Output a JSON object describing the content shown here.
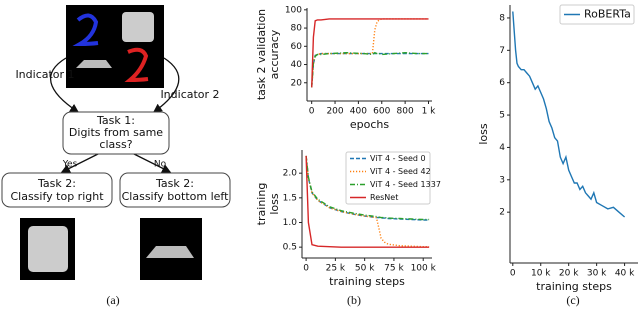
{
  "diagram": {
    "indicator_left": "Indicator 1",
    "indicator_right": "Indicator 2",
    "task1": [
      "Task 1:",
      "Digits from same",
      "class?"
    ],
    "yes": "Yes",
    "no": "No",
    "task2_left": [
      "Task 2:",
      "Classify top right"
    ],
    "task2_right": [
      "Task 2:",
      "Classify bottom left"
    ]
  },
  "panels": [
    "(a)",
    "(b)",
    "(c)"
  ],
  "chart_data": [
    {
      "type": "line",
      "ylabel": [
        "task 2  validation",
        "accuracy"
      ],
      "xlabel": "epochs",
      "x": [
        0,
        15,
        30,
        50,
        80,
        150,
        300,
        450,
        520,
        540,
        560,
        580,
        600,
        700,
        800,
        900,
        1000
      ],
      "xlim": [
        -40,
        1030
      ],
      "ylim": [
        0,
        102
      ],
      "xticks": [
        0,
        200,
        400,
        600,
        800,
        {
          "value": 1000,
          "label": "1 k"
        }
      ],
      "yticks": [
        20,
        40,
        60,
        80,
        100
      ],
      "series": [
        {
          "color": "#1f77b4",
          "linestyle": "dashed",
          "values": [
            15,
            40,
            50,
            51,
            52,
            52,
            52,
            52,
            52,
            52,
            52,
            52,
            52,
            52,
            52,
            52,
            52
          ]
        },
        {
          "color": "#ff7f0e",
          "linestyle": "dotted",
          "values": [
            15,
            40,
            50,
            51,
            52,
            52,
            52,
            52,
            52,
            78,
            87,
            89,
            90,
            90,
            90,
            90,
            90
          ]
        },
        {
          "color": "#2ca02c",
          "linestyle": "dashdot",
          "values": [
            15,
            42,
            49,
            51,
            51,
            52,
            53,
            52,
            51,
            53,
            52,
            52,
            51,
            52,
            53,
            52,
            52
          ]
        },
        {
          "color": "#d62728",
          "linestyle": "solid",
          "values": [
            15,
            70,
            88,
            89,
            89,
            90,
            90,
            90,
            90,
            90,
            90,
            90,
            90,
            90,
            90,
            90,
            90
          ]
        }
      ]
    },
    {
      "type": "line",
      "ylabel": [
        "training",
        "loss"
      ],
      "xlabel": "training steps",
      "legend": "upper right",
      "x": [
        0,
        2000,
        5000,
        10000,
        20000,
        30000,
        40000,
        50000,
        60000,
        62000,
        64000,
        67000,
        70000,
        80000,
        90000,
        100000,
        105000
      ],
      "xlim": [
        -3500,
        107500
      ],
      "ylim": [
        0.28,
        2.47
      ],
      "xticks": [
        0,
        {
          "value": 25000,
          "label": "25 k"
        },
        {
          "value": 50000,
          "label": "50 k"
        },
        {
          "value": 75000,
          "label": "75 k"
        },
        {
          "value": 100000,
          "label": "100 k"
        }
      ],
      "yticks": [
        0.5,
        {
          "value": 1,
          "label": "1.0"
        },
        1.5,
        {
          "value": 2,
          "label": "2.0"
        }
      ],
      "series": [
        {
          "name": "ViT 4 - Seed 0",
          "color": "#1f77b4",
          "linestyle": "dashed",
          "values": [
            2.35,
            1.9,
            1.6,
            1.45,
            1.3,
            1.22,
            1.17,
            1.13,
            1.1,
            1.1,
            1.09,
            1.09,
            1.08,
            1.07,
            1.06,
            1.05,
            1.05
          ]
        },
        {
          "name": "ViT 4 - Seed 42",
          "color": "#ff7f0e",
          "linestyle": "dotted",
          "values": [
            2.35,
            1.9,
            1.6,
            1.45,
            1.3,
            1.22,
            1.17,
            1.13,
            1.1,
            0.9,
            0.68,
            0.6,
            0.56,
            0.53,
            0.52,
            0.51,
            0.51
          ]
        },
        {
          "name": "ViT 4 - Seed 1337",
          "color": "#2ca02c",
          "linestyle": "dashdot",
          "values": [
            2.35,
            1.92,
            1.62,
            1.47,
            1.32,
            1.24,
            1.19,
            1.15,
            1.12,
            1.11,
            1.1,
            1.1,
            1.09,
            1.08,
            1.07,
            1.06,
            1.06
          ]
        },
        {
          "name": "ResNet",
          "color": "#d62728",
          "linestyle": "solid",
          "values": [
            2.35,
            1.0,
            0.55,
            0.52,
            0.51,
            0.5,
            0.5,
            0.5,
            0.5,
            0.5,
            0.5,
            0.5,
            0.5,
            0.5,
            0.5,
            0.5,
            0.5
          ]
        }
      ]
    },
    {
      "type": "line",
      "ylabel": [
        "loss"
      ],
      "xlabel": "training steps",
      "legend": "upper right",
      "x": [
        0,
        500,
        1000,
        1500,
        2000,
        3000,
        4000,
        5000,
        6000,
        7000,
        8000,
        9000,
        10000,
        11000,
        12000,
        13000,
        14000,
        15000,
        16000,
        17000,
        18000,
        19000,
        20000,
        21000,
        22000,
        23000,
        24000,
        25000,
        26000,
        27000,
        28000,
        29000,
        30000,
        32000,
        34000,
        36000,
        38000,
        40000
      ],
      "xlim": [
        -1000,
        44800
      ],
      "ylim": [
        0.43,
        8.4
      ],
      "xticks": [
        0,
        {
          "value": 10000,
          "label": "10 k"
        },
        {
          "value": 20000,
          "label": "20 k"
        },
        {
          "value": 30000,
          "label": "30 k"
        },
        {
          "value": 40000,
          "label": "40 k"
        }
      ],
      "yticks": [
        2,
        3,
        4,
        5,
        6,
        7,
        8
      ],
      "series": [
        {
          "name": "RoBERTa",
          "color": "#1f77b4",
          "linestyle": "solid",
          "values": [
            8.2,
            7.6,
            7.0,
            6.6,
            6.5,
            6.4,
            6.4,
            6.3,
            6.2,
            6.0,
            5.8,
            5.9,
            5.7,
            5.5,
            5.2,
            4.8,
            4.6,
            4.3,
            4.2,
            3.7,
            3.5,
            3.7,
            3.3,
            3.1,
            2.9,
            2.9,
            2.7,
            2.8,
            2.6,
            2.5,
            2.4,
            2.6,
            2.3,
            2.2,
            2.1,
            2.15,
            2.0,
            1.85
          ]
        }
      ]
    }
  ]
}
